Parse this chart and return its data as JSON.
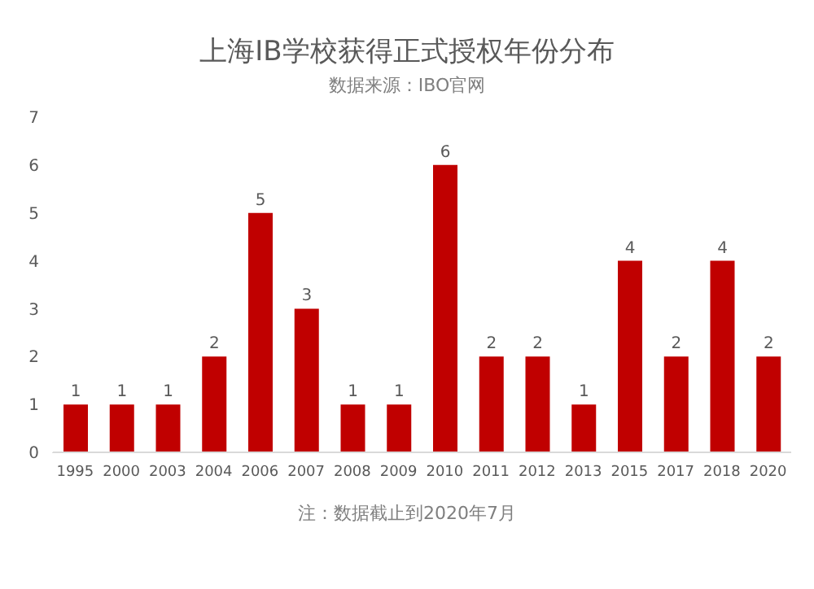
{
  "chart_data": {
    "type": "bar",
    "title": "上海IB学校获得正式授权年份分布",
    "subtitle": "数据来源：IBO官网",
    "annotations": [
      "注：数据截止到2020年7月"
    ],
    "categories": [
      "1995",
      "2000",
      "2003",
      "2004",
      "2006",
      "2007",
      "2008",
      "2009",
      "2010",
      "2011",
      "2012",
      "2013",
      "2015",
      "2017",
      "2018",
      "2020"
    ],
    "values": [
      1,
      1,
      1,
      2,
      5,
      3,
      1,
      1,
      6,
      2,
      2,
      1,
      4,
      2,
      4,
      2
    ],
    "color": "#c00000",
    "ylim": [
      0,
      7
    ],
    "yticks": [
      0,
      1,
      2,
      3,
      4,
      5,
      6,
      7
    ],
    "data_labels": true,
    "grid": false
  }
}
